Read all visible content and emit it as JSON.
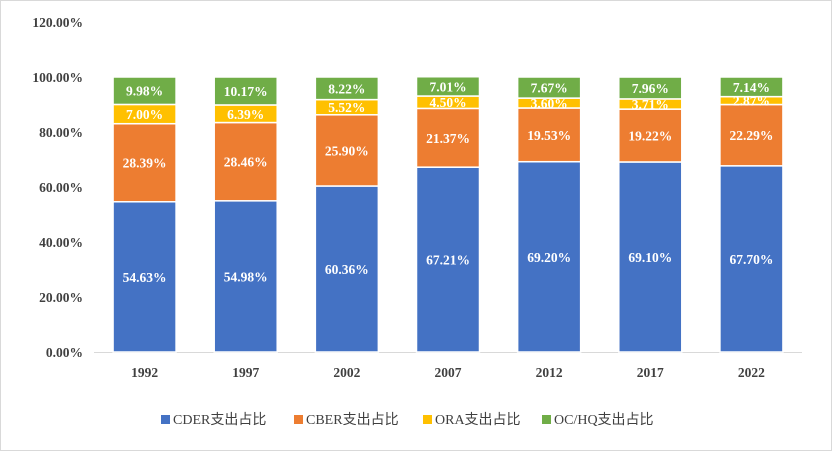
{
  "chart_data": {
    "type": "bar",
    "stacked": true,
    "categories": [
      "1992",
      "1997",
      "2002",
      "2007",
      "2012",
      "2017",
      "2022"
    ],
    "series": [
      {
        "name": "CDER支出占比",
        "color": "#4472c4",
        "values": [
          54.63,
          54.98,
          60.36,
          67.21,
          69.2,
          69.1,
          67.7
        ],
        "labels": [
          "54.63%",
          "54.98%",
          "60.36%",
          "67.21%",
          "69.20%",
          "69.10%",
          "67.70%"
        ]
      },
      {
        "name": "CBER支出占比",
        "color": "#ed7d31",
        "values": [
          28.39,
          28.46,
          25.9,
          21.37,
          19.53,
          19.22,
          22.29
        ],
        "labels": [
          "28.39%",
          "28.46%",
          "25.90%",
          "21.37%",
          "19.53%",
          "19.22%",
          "22.29%"
        ]
      },
      {
        "name": "ORA支出占比",
        "color": "#ffc000",
        "values": [
          7.0,
          6.39,
          5.52,
          4.5,
          3.6,
          3.71,
          2.87
        ],
        "labels": [
          "7.00%",
          "6.39%",
          "5.52%",
          "4.50%",
          "3.60%",
          "3.71%",
          "2.87%"
        ]
      },
      {
        "name": "OC/HQ支出占比",
        "color": "#70ad47",
        "values": [
          9.98,
          10.17,
          8.22,
          7.01,
          7.67,
          7.96,
          7.14
        ],
        "labels": [
          "9.98%",
          "10.17%",
          "8.22%",
          "7.01%",
          "7.67%",
          "7.96%",
          "7.14%"
        ]
      }
    ],
    "ylim": [
      0,
      120
    ],
    "yticks": [
      "0.00%",
      "20.00%",
      "40.00%",
      "60.00%",
      "80.00%",
      "100.00%",
      "120.00%"
    ],
    "grid": false,
    "legend_position": "bottom"
  }
}
